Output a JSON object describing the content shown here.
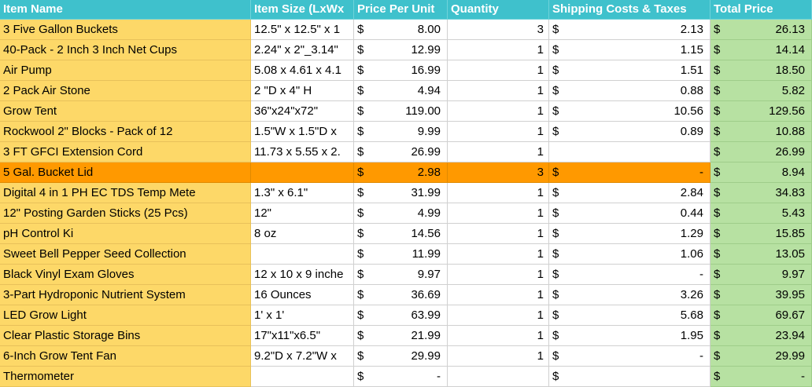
{
  "headers": {
    "name": "Item Name",
    "size": "Item Size (LxWx",
    "ppu": "Price Per Unit",
    "qty": "Quantity",
    "ship": "Shipping Costs & Taxes",
    "total": "Total Price"
  },
  "currency": "$",
  "colors": {
    "header": "#3fc1cc",
    "name_col": "#fdd868",
    "total_col": "#b7e1a2",
    "highlight_row": "#ff9900"
  },
  "rows": [
    {
      "name": "3 Five Gallon Buckets",
      "size": "12.5\" x 12.5\" x 1",
      "ppu_cur": "$",
      "ppu": "8.00",
      "qty": "3",
      "ship_cur": "$",
      "ship": "2.13",
      "tot_cur": "$",
      "total": "26.13"
    },
    {
      "name": "40-Pack - 2 Inch 3 Inch Net Cups",
      "size": "2.24\" x 2\"_3.14\"",
      "ppu_cur": "$",
      "ppu": "12.99",
      "qty": "1",
      "ship_cur": "$",
      "ship": "1.15",
      "tot_cur": "$",
      "total": "14.14"
    },
    {
      "name": "Air Pump",
      "size": "5.08 x 4.61 x 4.1",
      "ppu_cur": "$",
      "ppu": "16.99",
      "qty": "1",
      "ship_cur": "$",
      "ship": "1.51",
      "tot_cur": "$",
      "total": "18.50"
    },
    {
      "name": "2 Pack Air Stone",
      "size": " 2 \"D x 4\" H",
      "ppu_cur": "$",
      "ppu": "4.94",
      "qty": "1",
      "ship_cur": "$",
      "ship": "0.88",
      "tot_cur": "$",
      "total": "5.82"
    },
    {
      "name": "Grow Tent",
      "size": "36\"x24\"x72\"",
      "ppu_cur": "$",
      "ppu": "119.00",
      "qty": "1",
      "ship_cur": "$",
      "ship": "10.56",
      "tot_cur": "$",
      "total": "129.56"
    },
    {
      "name": "Rockwool 2\" Blocks - Pack of 12",
      "size": "1.5\"W x 1.5\"D x",
      "ppu_cur": "$",
      "ppu": "9.99",
      "qty": "1",
      "ship_cur": "$",
      "ship": "0.89",
      "tot_cur": "$",
      "total": "10.88"
    },
    {
      "name": "3 FT  GFCI Extension Cord",
      "size": "11.73 x 5.55 x 2.",
      "ppu_cur": "$",
      "ppu": "26.99",
      "qty": "1",
      "ship_cur": "",
      "ship": "",
      "tot_cur": "$",
      "total": "26.99"
    },
    {
      "name": "5 Gal. Bucket Lid",
      "size": "",
      "ppu_cur": "$",
      "ppu": "2.98",
      "qty": "3",
      "ship_cur": "$",
      "ship": "-",
      "tot_cur": "$",
      "total": "8.94",
      "highlight": true
    },
    {
      "name": "Digital 4 in 1 PH EC TDS Temp Mete",
      "size": "1.3\" x 6.1\"",
      "ppu_cur": "$",
      "ppu": "31.99",
      "qty": "1",
      "ship_cur": "$",
      "ship": "2.84",
      "tot_cur": "$",
      "total": "34.83"
    },
    {
      "name": "12\"  Posting Garden Sticks (25 Pcs)",
      "size": "12\"",
      "ppu_cur": "$",
      "ppu": "4.99",
      "qty": "1",
      "ship_cur": "$",
      "ship": "0.44",
      "tot_cur": "$",
      "total": "5.43"
    },
    {
      "name": "pH Control Ki",
      "size": "8 oz",
      "ppu_cur": "$",
      "ppu": "14.56",
      "qty": "1",
      "ship_cur": "$",
      "ship": "1.29",
      "tot_cur": "$",
      "total": "15.85"
    },
    {
      "name": " Sweet Bell Pepper Seed Collection",
      "size": "",
      "ppu_cur": "$",
      "ppu": "11.99",
      "qty": "1",
      "ship_cur": "$",
      "ship": "1.06",
      "tot_cur": "$",
      "total": "13.05"
    },
    {
      "name": "Black Vinyl Exam Gloves",
      "size": "12 x 10 x 9 inche",
      "ppu_cur": "$",
      "ppu": "9.97",
      "qty": "1",
      "ship_cur": "$",
      "ship": "-",
      "tot_cur": "$",
      "total": "9.97"
    },
    {
      "name": "3-Part Hydroponic Nutrient System",
      "size": "16 Ounces",
      "ppu_cur": "$",
      "ppu": "36.69",
      "qty": "1",
      "ship_cur": "$",
      "ship": "3.26",
      "tot_cur": "$",
      "total": "39.95"
    },
    {
      "name": "LED Grow Light",
      "size": "1' x 1'",
      "ppu_cur": "$",
      "ppu": "63.99",
      "qty": "1",
      "ship_cur": "$",
      "ship": "5.68",
      "tot_cur": "$",
      "total": "69.67"
    },
    {
      "name": "Clear Plastic Storage Bins",
      "size": "17\"x11\"x6.5\"",
      "ppu_cur": "$",
      "ppu": "21.99",
      "qty": "1",
      "ship_cur": "$",
      "ship": "1.95",
      "tot_cur": "$",
      "total": "23.94"
    },
    {
      "name": " 6-Inch Grow Tent Fan",
      "size": "9.2\"D x 7.2\"W x",
      "ppu_cur": "$",
      "ppu": "29.99",
      "qty": "1",
      "ship_cur": "$",
      "ship": "-",
      "tot_cur": "$",
      "total": "29.99"
    },
    {
      "name": "Thermometer",
      "size": "",
      "ppu_cur": "$",
      "ppu": "-",
      "qty": "",
      "ship_cur": "$",
      "ship": "",
      "tot_cur": "$",
      "total": "-"
    }
  ]
}
